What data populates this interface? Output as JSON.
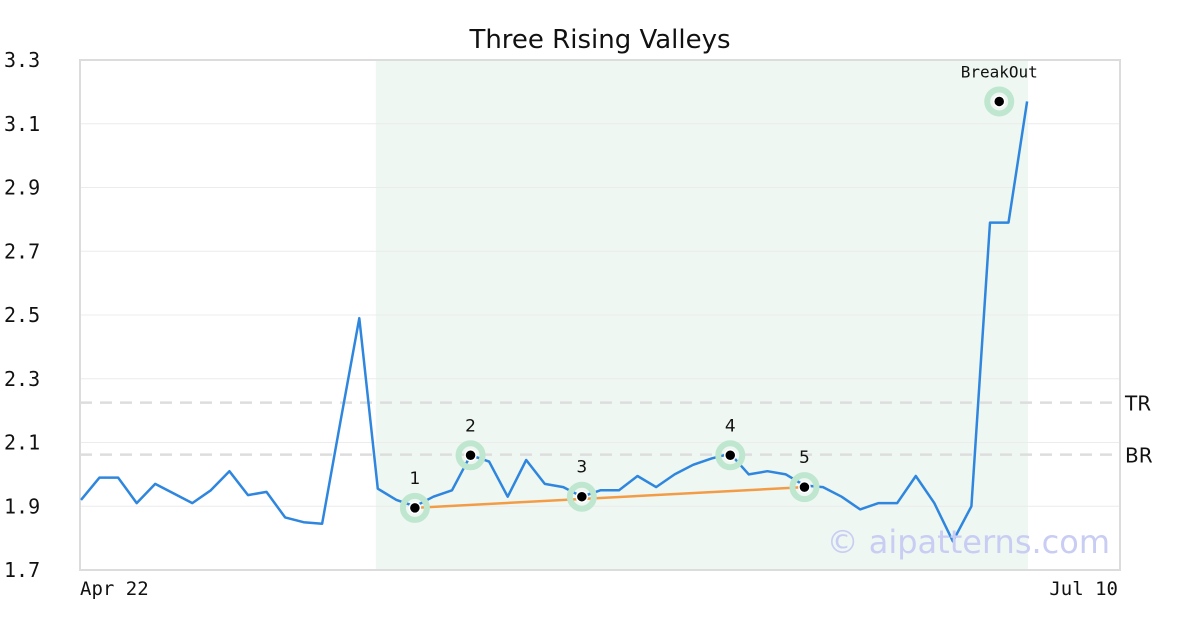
{
  "chart_data": {
    "type": "line",
    "title": "Three Rising Valleys",
    "ylim": [
      1.7,
      3.3
    ],
    "yticks": [
      "1.7",
      "1.9",
      "2.1",
      "2.3",
      "2.5",
      "2.7",
      "2.9",
      "3.1",
      "3.3"
    ],
    "xticks": {
      "first": "Apr 22",
      "last": "Jul 10"
    },
    "grid": true,
    "series": [
      {
        "color": "#2e86de",
        "values": [
          1.92,
          1.99,
          1.99,
          1.91,
          1.97,
          1.94,
          1.91,
          1.95,
          2.01,
          1.935,
          1.945,
          1.865,
          1.85,
          1.845,
          2.17,
          2.49,
          1.955,
          1.92,
          1.9,
          1.93,
          1.95,
          2.06,
          2.04,
          1.93,
          2.045,
          1.97,
          1.96,
          1.93,
          1.95,
          1.95,
          1.995,
          1.96,
          2.0,
          2.03,
          2.05,
          2.065,
          2.0,
          2.01,
          2.0,
          1.965,
          1.96,
          1.93,
          1.89,
          1.91,
          1.91,
          1.995,
          1.91,
          1.79,
          1.9,
          2.79,
          2.79,
          3.17
        ]
      }
    ],
    "pattern_region": {
      "start_index": 16,
      "end_index": 51,
      "color": "#eef7f2"
    },
    "points": [
      {
        "label": "1",
        "index": 18,
        "value": 1.895
      },
      {
        "label": "2",
        "index": 21,
        "value": 2.06
      },
      {
        "label": "3",
        "index": 27,
        "value": 1.93
      },
      {
        "label": "4",
        "index": 35,
        "value": 2.06
      },
      {
        "label": "5",
        "index": 39,
        "value": 1.96
      }
    ],
    "trendline": {
      "from_index": 18,
      "from_value": 1.895,
      "to_index": 39,
      "to_value": 1.96,
      "color": "#f39c45"
    },
    "breakout": {
      "label": "BreakOut",
      "index": 49.5,
      "value": 3.17
    },
    "levels": [
      {
        "label": "TR",
        "value": 2.225
      },
      {
        "label": "BR",
        "value": 2.062
      }
    ],
    "watermark": "© aipatterns.com"
  }
}
